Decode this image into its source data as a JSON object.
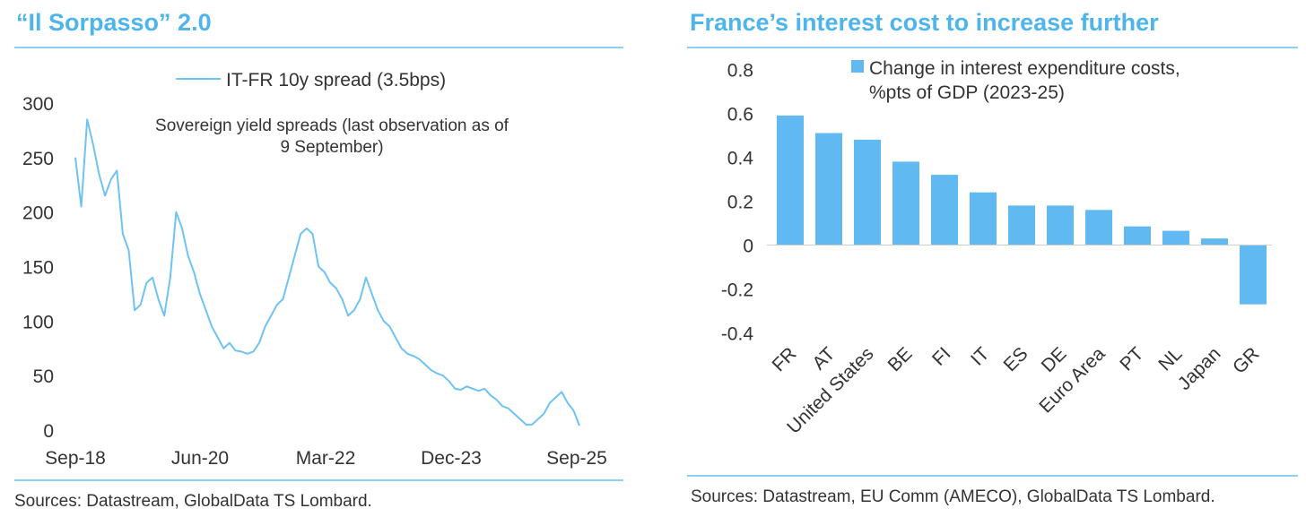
{
  "colors": {
    "accent": "#4db4ec",
    "rule": "#8ccff3",
    "line": "#6ec3f2",
    "bar": "#60b9f1"
  },
  "panels": [
    {
      "title": "“Il Sorpasso” 2.0",
      "source": "Sources: Datastream, GlobalData TS Lombard."
    },
    {
      "title": "France’s interest cost to increase further",
      "source": "Sources: Datastream, EU Comm (AMECO), GlobalData TS Lombard."
    }
  ],
  "chart_data": [
    {
      "type": "line",
      "annotation": [
        "Sovereign yield spreads (last observation as of",
        "9 September)"
      ],
      "x_tick_labels": [
        "Sep-18",
        "Jun-20",
        "Mar-22",
        "Dec-23",
        "Sep-25"
      ],
      "x_range": [
        "2018-08",
        "2025-09"
      ],
      "ylim": [
        0,
        300
      ],
      "y_ticks": [
        0,
        50,
        100,
        150,
        200,
        250,
        300
      ],
      "legend": "top-center",
      "grid": false,
      "series": [
        {
          "name": "IT-FR 10y spread (3.5bps)",
          "x": [
            "2018-08",
            "2018-09",
            "2018-10",
            "2018-11",
            "2018-12",
            "2019-01",
            "2019-02",
            "2019-03",
            "2019-04",
            "2019-05",
            "2019-06",
            "2019-07",
            "2019-08",
            "2019-09",
            "2019-10",
            "2019-11",
            "2019-12",
            "2020-01",
            "2020-02",
            "2020-03",
            "2020-04",
            "2020-05",
            "2020-06",
            "2020-07",
            "2020-08",
            "2020-09",
            "2020-10",
            "2020-11",
            "2020-12",
            "2021-01",
            "2021-02",
            "2021-03",
            "2021-04",
            "2021-05",
            "2021-06",
            "2021-07",
            "2021-08",
            "2021-09",
            "2021-10",
            "2021-11",
            "2021-12",
            "2022-01",
            "2022-02",
            "2022-03",
            "2022-04",
            "2022-05",
            "2022-06",
            "2022-07",
            "2022-08",
            "2022-09",
            "2022-10",
            "2022-11",
            "2022-12",
            "2023-01",
            "2023-02",
            "2023-03",
            "2023-04",
            "2023-05",
            "2023-06",
            "2023-07",
            "2023-08",
            "2023-09",
            "2023-10",
            "2023-11",
            "2023-12",
            "2024-01",
            "2024-02",
            "2024-03",
            "2024-04",
            "2024-05",
            "2024-06",
            "2024-07",
            "2024-08",
            "2024-09",
            "2024-10",
            "2024-11",
            "2024-12",
            "2025-01",
            "2025-02",
            "2025-03",
            "2025-04",
            "2025-05",
            "2025-06",
            "2025-07",
            "2025-08",
            "2025-09"
          ],
          "values": [
            250,
            205,
            285,
            262,
            235,
            215,
            230,
            238,
            180,
            165,
            110,
            115,
            135,
            140,
            120,
            105,
            140,
            200,
            185,
            160,
            145,
            125,
            110,
            95,
            85,
            75,
            80,
            73,
            72,
            70,
            72,
            80,
            95,
            105,
            115,
            120,
            140,
            160,
            180,
            185,
            180,
            150,
            145,
            135,
            130,
            120,
            105,
            110,
            120,
            140,
            125,
            110,
            100,
            95,
            85,
            75,
            70,
            68,
            65,
            60,
            55,
            52,
            50,
            45,
            38,
            37,
            40,
            38,
            36,
            38,
            32,
            28,
            22,
            20,
            15,
            10,
            5,
            5,
            10,
            15,
            25,
            30,
            35,
            25,
            18,
            4
          ]
        }
      ]
    },
    {
      "type": "bar",
      "categories": [
        "FR",
        "AT",
        "United States",
        "BE",
        "FI",
        "IT",
        "ES",
        "DE",
        "Euro Area",
        "PT",
        "NL",
        "Japan",
        "GR"
      ],
      "values": [
        0.59,
        0.51,
        0.48,
        0.38,
        0.32,
        0.24,
        0.18,
        0.18,
        0.16,
        0.085,
        0.065,
        0.03,
        -0.27
      ],
      "ylim": [
        -0.4,
        0.8
      ],
      "y_ticks": [
        -0.4,
        -0.2,
        0,
        0.2,
        0.4,
        0.6,
        0.8
      ],
      "legend": "top",
      "grid": false,
      "series": [
        {
          "name": [
            "Change in interest expenditure costs,",
            "%pts of GDP (2023-25)"
          ]
        }
      ]
    }
  ]
}
